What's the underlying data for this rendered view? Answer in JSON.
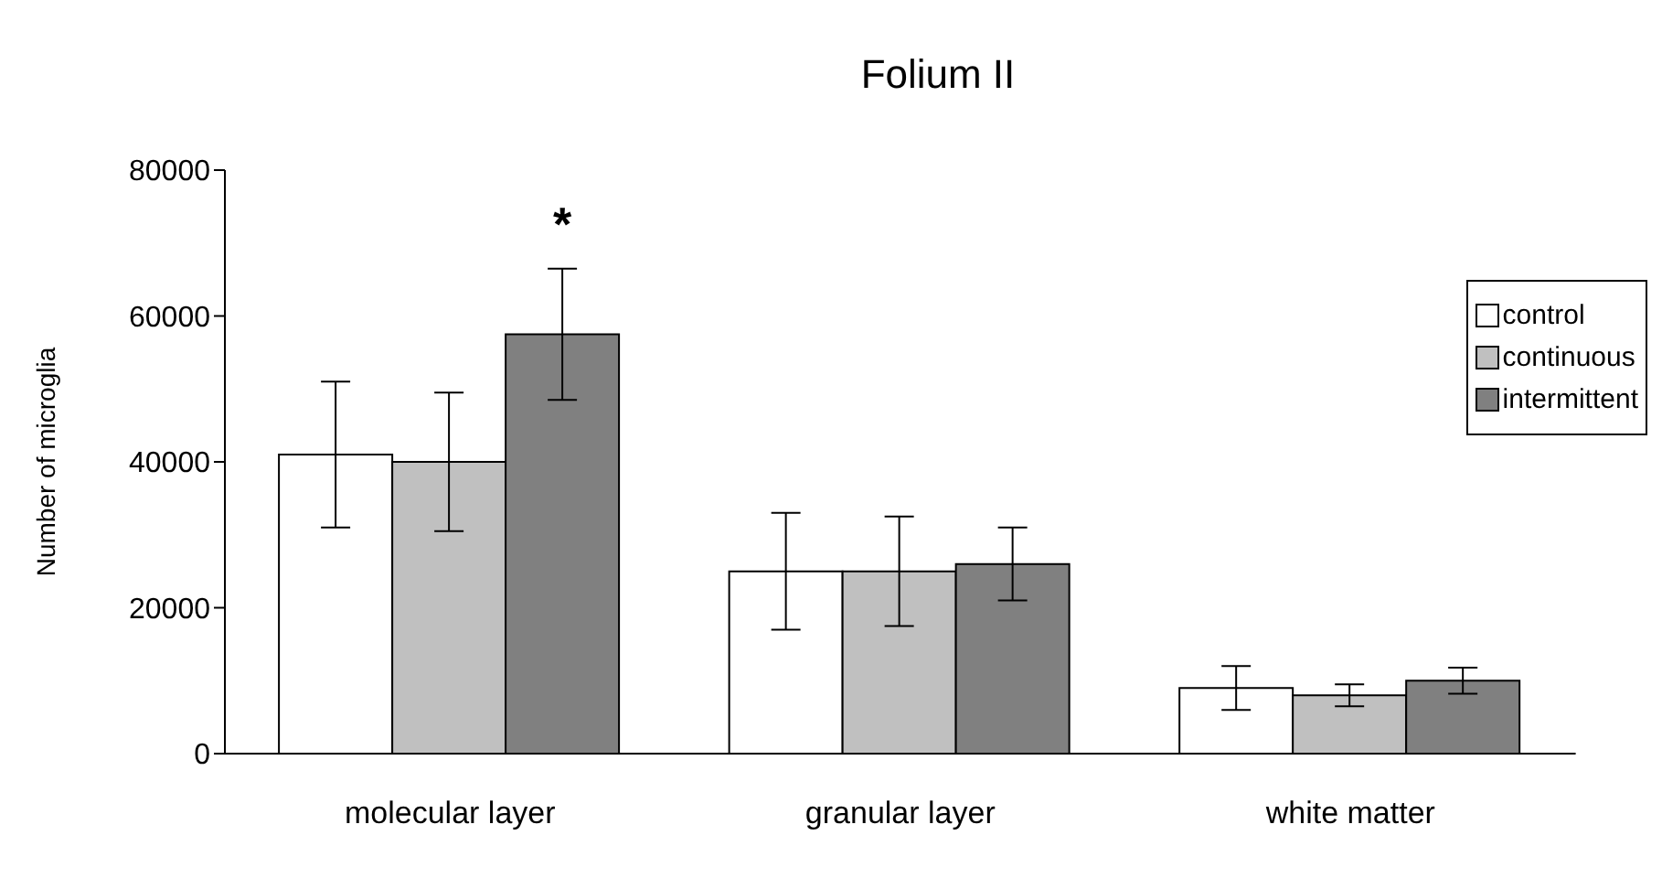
{
  "chart_data": {
    "type": "bar",
    "title": "Folium II",
    "ylabel": "Number of microglia",
    "categories": [
      "molecular layer",
      "granular layer",
      "white matter"
    ],
    "series": [
      {
        "name": "control",
        "color": "#ffffff",
        "values": [
          41000,
          25000,
          9000
        ],
        "errors": [
          10000,
          8000,
          3000
        ]
      },
      {
        "name": "continuous",
        "color": "#c0c0c0",
        "values": [
          40000,
          25000,
          8000
        ],
        "errors": [
          9500,
          7500,
          1500
        ]
      },
      {
        "name": "intermittent",
        "color": "#808080",
        "values": [
          57500,
          26000,
          10000
        ],
        "errors": [
          9000,
          5000,
          1800
        ]
      }
    ],
    "ylim": [
      0,
      80000
    ],
    "yticks": [
      0,
      20000,
      40000,
      60000,
      80000
    ],
    "grid": false,
    "legend": "right",
    "annotations": [
      "*"
    ]
  }
}
